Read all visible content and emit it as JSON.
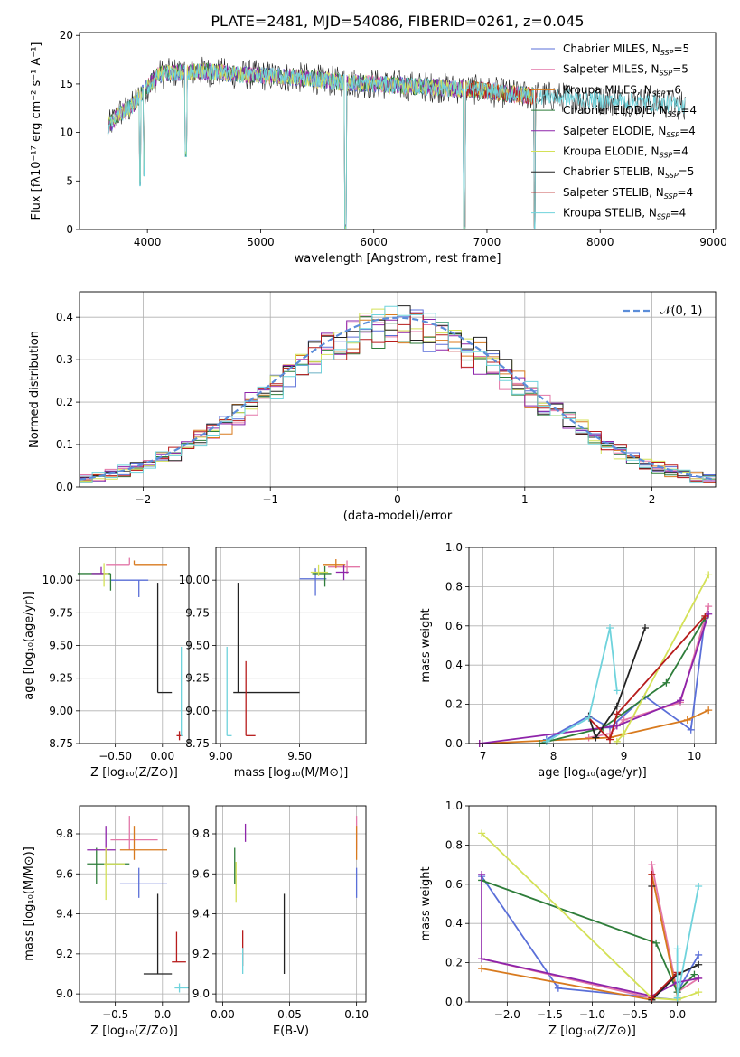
{
  "title": "PLATE=2481, MJD=54086, FIBERID=0261, z=0.045",
  "colors": [
    "#5a6fd8",
    "#e377a8",
    "#d87a1e",
    "#2e7d3a",
    "#8e24aa",
    "#d4e157",
    "#222222",
    "#b71c1c",
    "#6fd3dc"
  ],
  "legend": [
    {
      "base": "Chabrier MILES, N",
      "sub": "SSP",
      "val": "=5"
    },
    {
      "base": "Salpeter MILES, N",
      "sub": "SSP",
      "val": "=5"
    },
    {
      "base": "Kroupa MILES, N",
      "sub": "SSP",
      "val": "=6"
    },
    {
      "base": "Chabrier ELODIE, N",
      "sub": "SSP",
      "val": "=4"
    },
    {
      "base": "Salpeter ELODIE, N",
      "sub": "SSP",
      "val": "=4"
    },
    {
      "base": "Kroupa ELODIE, N",
      "sub": "SSP",
      "val": "=4"
    },
    {
      "base": "Chabrier STELIB, N",
      "sub": "SSP",
      "val": "=5"
    },
    {
      "base": "Salpeter STELIB, N",
      "sub": "SSP",
      "val": "=4"
    },
    {
      "base": "Kroupa STELIB, N",
      "sub": "SSP",
      "val": "=4"
    }
  ],
  "chart_data": [
    {
      "id": "spectrum",
      "type": "line",
      "xlabel": "wavelength [Angstrom, rest frame]",
      "ylabel": "Flux [fλ10⁻¹⁷ erg cm⁻² s⁻¹ A⁻¹]",
      "xlim": [
        3400,
        9020
      ],
      "ylim": [
        0,
        20.3
      ],
      "xticks": [
        4000,
        5000,
        6000,
        7000,
        8000,
        9000
      ],
      "yticks": [
        0,
        5,
        10,
        15,
        20
      ],
      "continuum": {
        "x": [
          3650,
          3750,
          3850,
          3950,
          4100,
          4300,
          4500,
          4800,
          5100,
          5400,
          5700,
          6000,
          6300,
          6600,
          6900,
          7200,
          7400,
          7700,
          8000,
          8300,
          8750
        ],
        "y": [
          10.5,
          12,
          12.5,
          14,
          16,
          16.2,
          16.3,
          16,
          15.8,
          15.6,
          15.2,
          15,
          14.8,
          14.6,
          14.4,
          14,
          13.8,
          13.6,
          13.3,
          13.2,
          12.8
        ]
      },
      "absorption": [
        {
          "x": 3934,
          "y": 4.5
        },
        {
          "x": 3969,
          "y": 5.5
        },
        {
          "x": 4340,
          "y": 7.5
        },
        {
          "x": 5750,
          "y": 0
        },
        {
          "x": 6800,
          "y": 0
        },
        {
          "x": 7420,
          "y": 0
        }
      ],
      "series": [
        "Chabrier MILES",
        "Salpeter MILES",
        "Kroupa MILES",
        "Chabrier ELODIE",
        "Salpeter ELODIE",
        "Kroupa ELODIE",
        "Chabrier STELIB",
        "Salpeter STELIB",
        "Kroupa STELIB"
      ]
    },
    {
      "id": "residuals",
      "type": "histogram",
      "xlabel": "(data-model)/error",
      "ylabel": "Normed distribution",
      "xlim": [
        -2.5,
        2.5
      ],
      "ylim": [
        0,
        0.46
      ],
      "xticks": [
        -2,
        -1,
        0,
        1,
        2
      ],
      "yticks": [
        0.0,
        0.1,
        0.2,
        0.3,
        0.4
      ],
      "bin_width": 0.1,
      "reference": {
        "name": "𝒩(0, 1)",
        "mean": 0,
        "sigma": 1
      }
    },
    {
      "id": "age_vs_Z",
      "type": "scatter",
      "xlabel": "Z [log₁₀(Z/Z⊙)]",
      "ylabel": "age  [log₁₀(age/yr)]",
      "xlim": [
        -0.88,
        0.28
      ],
      "ylim": [
        8.75,
        10.25
      ],
      "xticks": [
        -0.5,
        0.0
      ],
      "yticks": [
        8.75,
        9.0,
        9.25,
        9.5,
        9.75,
        10.0
      ],
      "points": [
        {
          "x": -0.25,
          "y": 10.0,
          "xerr": [
            0.3,
            0.1
          ],
          "yerr": [
            0.13,
            0.0
          ]
        },
        {
          "x": -0.35,
          "y": 10.12,
          "xerr": [
            0.25,
            0.0
          ],
          "yerr": [
            0.0,
            0.05
          ]
        },
        {
          "x": -0.3,
          "y": 10.12,
          "xerr": [
            0.0,
            0.35
          ],
          "yerr": [
            0.0,
            0.03
          ]
        },
        {
          "x": -0.55,
          "y": 10.05,
          "xerr": [
            0.35,
            0.0
          ],
          "yerr": [
            0.13,
            0.0
          ]
        },
        {
          "x": -0.65,
          "y": 10.05,
          "xerr": [
            0.1,
            0.05
          ],
          "yerr": [
            0.0,
            0.05
          ]
        },
        {
          "x": -0.62,
          "y": 10.05,
          "xerr": [
            0.0,
            0.05
          ],
          "yerr": [
            0.1,
            0.08
          ]
        },
        {
          "x": -0.05,
          "y": 9.14,
          "xerr": [
            0.0,
            0.15
          ],
          "yerr": [
            0.0,
            0.84
          ]
        },
        {
          "x": 0.18,
          "y": 8.81,
          "xerr": [
            0.03,
            0.02
          ],
          "yerr": [
            0.0,
            0.0
          ]
        },
        {
          "x": 0.2,
          "y": 8.81,
          "xerr": [
            0.0,
            0.02
          ],
          "yerr": [
            0.0,
            0.68
          ]
        }
      ]
    },
    {
      "id": "age_vs_mass",
      "type": "scatter",
      "xlabel": "mass [log₁₀(M/M⊙)]",
      "ylabel": "",
      "xlim": [
        8.97,
        9.92
      ],
      "ylim": [
        8.75,
        10.25
      ],
      "xticks": [
        9.0,
        9.5
      ],
      "yticks": [
        8.75,
        9.0,
        9.25,
        9.5,
        9.75,
        10.0
      ],
      "points": [
        {
          "x": 9.6,
          "y": 10.01,
          "xerr": [
            0.1,
            0.07
          ],
          "yerr": [
            0.13,
            0.08
          ]
        },
        {
          "x": 9.8,
          "y": 10.1,
          "xerr": [
            0.12,
            0.08
          ],
          "yerr": [
            0.05,
            0.05
          ]
        },
        {
          "x": 9.73,
          "y": 10.12,
          "xerr": [
            0.08,
            0.06
          ],
          "yerr": [
            0.03,
            0.04
          ]
        },
        {
          "x": 9.66,
          "y": 10.05,
          "xerr": [
            0.08,
            0.04
          ],
          "yerr": [
            0.1,
            0.06
          ]
        },
        {
          "x": 9.78,
          "y": 10.06,
          "xerr": [
            0.05,
            0.03
          ],
          "yerr": [
            0.06,
            0.06
          ]
        },
        {
          "x": 9.62,
          "y": 10.06,
          "xerr": [
            0.05,
            0.06
          ],
          "yerr": [
            0.03,
            0.06
          ]
        },
        {
          "x": 9.11,
          "y": 9.14,
          "xerr": [
            0.03,
            0.39
          ],
          "yerr": [
            0.0,
            0.84
          ]
        },
        {
          "x": 9.16,
          "y": 8.81,
          "xerr": [
            0.0,
            0.06
          ],
          "yerr": [
            0.0,
            0.57
          ]
        },
        {
          "x": 9.04,
          "y": 8.81,
          "xerr": [
            0.0,
            0.03
          ],
          "yerr": [
            0.0,
            0.68
          ]
        }
      ]
    },
    {
      "id": "weight_vs_age",
      "type": "line",
      "xlabel": "age  [log₁₀(age/yr)]",
      "ylabel": "mass weight",
      "xlim": [
        6.8,
        10.3
      ],
      "ylim": [
        0,
        1
      ],
      "xticks": [
        7,
        8,
        9,
        10
      ],
      "yticks": [
        0.0,
        0.2,
        0.4,
        0.6,
        0.8,
        1.0
      ],
      "series": [
        {
          "x": [
            7.9,
            8.5,
            8.8,
            9.3,
            9.95,
            10.15
          ],
          "y": [
            0.02,
            0.14,
            0.08,
            0.24,
            0.07,
            0.64
          ]
        },
        {
          "x": [
            8.5,
            8.8,
            9.0,
            9.8,
            10.2
          ],
          "y": [
            0.03,
            0.05,
            0.12,
            0.21,
            0.7
          ]
        },
        {
          "x": [
            6.95,
            8.8,
            9.9,
            10.2
          ],
          "y": [
            0.0,
            0.03,
            0.12,
            0.17
          ]
        },
        {
          "x": [
            7.8,
            8.7,
            9.6,
            10.15
          ],
          "y": [
            0.0,
            0.08,
            0.31,
            0.64
          ]
        },
        {
          "x": [
            6.95,
            8.9,
            9.8,
            10.2
          ],
          "y": [
            0.0,
            0.09,
            0.22,
            0.66
          ]
        },
        {
          "x": [
            8.9,
            9.0,
            10.2
          ],
          "y": [
            0.01,
            0.05,
            0.86
          ]
        },
        {
          "x": [
            8.5,
            8.6,
            8.9,
            9.3
          ],
          "y": [
            0.14,
            0.03,
            0.19,
            0.59
          ]
        },
        {
          "x": [
            8.5,
            8.8,
            8.9,
            10.15
          ],
          "y": [
            0.13,
            0.02,
            0.15,
            0.65
          ]
        },
        {
          "x": [
            7.9,
            8.5,
            8.8,
            8.9
          ],
          "y": [
            0.01,
            0.13,
            0.59,
            0.27
          ]
        }
      ]
    },
    {
      "id": "mass_vs_Z",
      "type": "scatter",
      "xlabel": "Z [log₁₀(Z/Z⊙)]",
      "ylabel": "mass [log₁₀(M/M⊙)]",
      "xlim": [
        -0.88,
        0.28
      ],
      "ylim": [
        8.96,
        9.94
      ],
      "xticks": [
        -0.5,
        0.0
      ],
      "yticks": [
        9.0,
        9.2,
        9.4,
        9.6,
        9.8
      ],
      "points": [
        {
          "x": -0.25,
          "y": 9.55,
          "xerr": [
            0.2,
            0.3
          ],
          "yerr": [
            0.07,
            0.08
          ]
        },
        {
          "x": -0.35,
          "y": 9.77,
          "xerr": [
            0.2,
            0.3
          ],
          "yerr": [
            0.05,
            0.12
          ]
        },
        {
          "x": -0.3,
          "y": 9.72,
          "xerr": [
            0.15,
            0.35
          ],
          "yerr": [
            0.05,
            0.12
          ]
        },
        {
          "x": -0.7,
          "y": 9.65,
          "xerr": [
            0.1,
            0.35
          ],
          "yerr": [
            0.1,
            0.08
          ]
        },
        {
          "x": -0.6,
          "y": 9.72,
          "xerr": [
            0.2,
            0.1
          ],
          "yerr": [
            0.08,
            0.12
          ]
        },
        {
          "x": -0.6,
          "y": 9.65,
          "xerr": [
            0.02,
            0.2
          ],
          "yerr": [
            0.18,
            0.08
          ]
        },
        {
          "x": -0.05,
          "y": 9.1,
          "xerr": [
            0.15,
            0.15
          ],
          "yerr": [
            0.0,
            0.4
          ]
        },
        {
          "x": 0.15,
          "y": 9.16,
          "xerr": [
            0.05,
            0.1
          ],
          "yerr": [
            0.0,
            0.15
          ]
        },
        {
          "x": 0.18,
          "y": 9.03,
          "xerr": [
            0.05,
            0.1
          ],
          "yerr": [
            0.0,
            0.0
          ]
        }
      ]
    },
    {
      "id": "mass_vs_EBV",
      "type": "scatter",
      "xlabel": "E(B-V)",
      "ylabel": "",
      "xlim": [
        -0.005,
        0.107
      ],
      "ylim": [
        8.96,
        9.94
      ],
      "xticks": [
        0.0,
        0.05,
        0.1
      ],
      "yticks": [
        9.0,
        9.2,
        9.4,
        9.6,
        9.8
      ],
      "points": [
        {
          "x": 0.1,
          "y": 9.55,
          "yerr": [
            0.07,
            0.08
          ]
        },
        {
          "x": 0.1,
          "y": 9.77,
          "yerr": [
            0.05,
            0.12
          ]
        },
        {
          "x": 0.1,
          "y": 9.72,
          "yerr": [
            0.05,
            0.12
          ]
        },
        {
          "x": 0.009,
          "y": 9.65,
          "yerr": [
            0.1,
            0.08
          ]
        },
        {
          "x": 0.017,
          "y": 9.8,
          "yerr": [
            0.04,
            0.05
          ]
        },
        {
          "x": 0.01,
          "y": 9.6,
          "yerr": [
            0.14,
            0.06
          ]
        },
        {
          "x": 0.046,
          "y": 9.2,
          "yerr": [
            0.1,
            0.3
          ]
        },
        {
          "x": 0.015,
          "y": 9.2,
          "yerr": [
            0.06,
            0.12
          ]
        },
        {
          "x": 0.015,
          "y": 9.15,
          "yerr": [
            0.05,
            0.08
          ]
        }
      ]
    },
    {
      "id": "weight_vs_Z",
      "type": "line",
      "xlabel": "Z [log₁₀(Z/Z⊙)]",
      "ylabel": "mass weight",
      "xlim": [
        -2.45,
        0.45
      ],
      "ylim": [
        0,
        1
      ],
      "xticks": [
        -2.0,
        -1.5,
        -1.0,
        -0.5,
        0.0
      ],
      "yticks": [
        0.0,
        0.2,
        0.4,
        0.6,
        0.8,
        1.0
      ],
      "series": [
        {
          "x": [
            -2.3,
            -1.4,
            0.0,
            0.0,
            0.25
          ],
          "y": [
            0.64,
            0.07,
            0.01,
            0.05,
            0.24
          ]
        },
        {
          "x": [
            -2.3,
            -0.3,
            -0.3,
            0.0,
            0.25
          ],
          "y": [
            0.22,
            0.02,
            0.7,
            0.05,
            0.12
          ]
        },
        {
          "x": [
            -2.3,
            -0.3,
            -0.3,
            0.0
          ],
          "y": [
            0.17,
            0.01,
            0.65,
            0.03
          ]
        },
        {
          "x": [
            -2.3,
            -0.25,
            0.0,
            0.2
          ],
          "y": [
            0.62,
            0.3,
            0.05,
            0.14
          ]
        },
        {
          "x": [
            -2.3,
            -2.3,
            -0.3,
            0.0,
            0.25
          ],
          "y": [
            0.65,
            0.22,
            0.03,
            0.1,
            0.12
          ]
        },
        {
          "x": [
            -2.3,
            -0.3,
            0.0,
            0.25
          ],
          "y": [
            0.86,
            0.02,
            0.01,
            0.05
          ]
        },
        {
          "x": [
            -0.3,
            -0.3,
            0.0,
            0.25
          ],
          "y": [
            0.59,
            0.01,
            0.14,
            0.19
          ]
        },
        {
          "x": [
            -0.3,
            -0.3,
            0.0
          ],
          "y": [
            0.65,
            0.02,
            0.15
          ]
        },
        {
          "x": [
            0.0,
            0.0,
            0.25
          ],
          "y": [
            0.27,
            0.02,
            0.59
          ]
        }
      ]
    }
  ]
}
